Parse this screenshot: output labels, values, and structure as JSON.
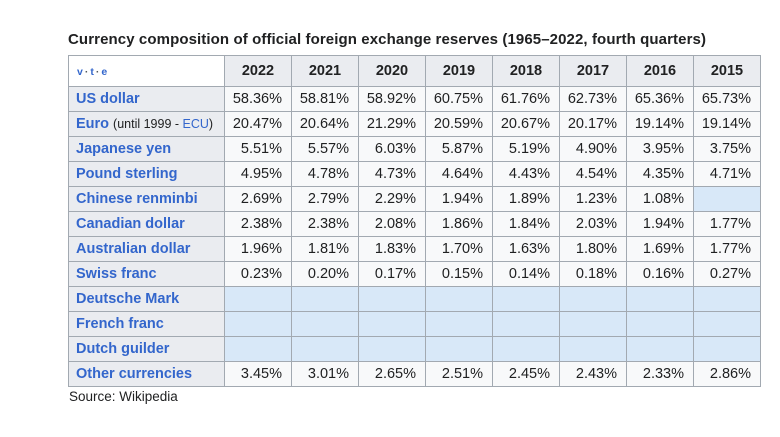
{
  "title": "Currency composition of official foreign exchange reserves (1965–2022, fourth quarters)",
  "source": "Source: Wikipedia",
  "nav": {
    "links": [
      "v",
      "t",
      "e"
    ],
    "separator": "·"
  },
  "table": {
    "year_headers": [
      "2022",
      "2021",
      "2020",
      "2019",
      "2018",
      "2017",
      "2016",
      "2015"
    ],
    "rows": [
      {
        "label": "US dollar",
        "values": [
          "58.36%",
          "58.81%",
          "58.92%",
          "60.75%",
          "61.76%",
          "62.73%",
          "65.36%",
          "65.73%"
        ]
      },
      {
        "label": "Euro",
        "note_pre": "(until 1999 - ",
        "note_link": "ECU",
        "note_post": ")",
        "values": [
          "20.47%",
          "20.64%",
          "21.29%",
          "20.59%",
          "20.67%",
          "20.17%",
          "19.14%",
          "19.14%"
        ]
      },
      {
        "label": "Japanese yen",
        "values": [
          "5.51%",
          "5.57%",
          "6.03%",
          "5.87%",
          "5.19%",
          "4.90%",
          "3.95%",
          "3.75%"
        ]
      },
      {
        "label": "Pound sterling",
        "values": [
          "4.95%",
          "4.78%",
          "4.73%",
          "4.64%",
          "4.43%",
          "4.54%",
          "4.35%",
          "4.71%"
        ]
      },
      {
        "label": "Chinese renminbi",
        "values": [
          "2.69%",
          "2.79%",
          "2.29%",
          "1.94%",
          "1.89%",
          "1.23%",
          "1.08%",
          ""
        ]
      },
      {
        "label": "Canadian dollar",
        "values": [
          "2.38%",
          "2.38%",
          "2.08%",
          "1.86%",
          "1.84%",
          "2.03%",
          "1.94%",
          "1.77%"
        ]
      },
      {
        "label": "Australian dollar",
        "values": [
          "1.96%",
          "1.81%",
          "1.83%",
          "1.70%",
          "1.63%",
          "1.80%",
          "1.69%",
          "1.77%"
        ]
      },
      {
        "label": "Swiss franc",
        "values": [
          "0.23%",
          "0.20%",
          "0.17%",
          "0.15%",
          "0.14%",
          "0.18%",
          "0.16%",
          "0.27%"
        ]
      },
      {
        "label": "Deutsche Mark",
        "values": [
          "",
          "",
          "",
          "",
          "",
          "",
          "",
          ""
        ]
      },
      {
        "label": "French franc",
        "values": [
          "",
          "",
          "",
          "",
          "",
          "",
          "",
          ""
        ]
      },
      {
        "label": "Dutch guilder",
        "values": [
          "",
          "",
          "",
          "",
          "",
          "",
          "",
          ""
        ]
      },
      {
        "label": "Other currencies",
        "values": [
          "3.45%",
          "3.01%",
          "2.65%",
          "2.51%",
          "2.45%",
          "2.43%",
          "2.33%",
          "2.86%"
        ]
      }
    ]
  },
  "colors": {
    "header_bg": "#eaecf0",
    "cell_bg": "#f8f9fa",
    "empty_cell_bg": "#d8e8f8",
    "border": "#a2a9b1",
    "link": "#3366cc",
    "text": "#202122"
  },
  "chart_data": {
    "type": "table",
    "title": "Currency composition of official foreign exchange reserves (1965–2022, fourth quarters)",
    "unit": "%",
    "categories": [
      "2022",
      "2021",
      "2020",
      "2019",
      "2018",
      "2017",
      "2016",
      "2015"
    ],
    "series": [
      {
        "name": "US dollar",
        "values": [
          58.36,
          58.81,
          58.92,
          60.75,
          61.76,
          62.73,
          65.36,
          65.73
        ]
      },
      {
        "name": "Euro (until 1999 - ECU)",
        "values": [
          20.47,
          20.64,
          21.29,
          20.59,
          20.67,
          20.17,
          19.14,
          19.14
        ]
      },
      {
        "name": "Japanese yen",
        "values": [
          5.51,
          5.57,
          6.03,
          5.87,
          5.19,
          4.9,
          3.95,
          3.75
        ]
      },
      {
        "name": "Pound sterling",
        "values": [
          4.95,
          4.78,
          4.73,
          4.64,
          4.43,
          4.54,
          4.35,
          4.71
        ]
      },
      {
        "name": "Chinese renminbi",
        "values": [
          2.69,
          2.79,
          2.29,
          1.94,
          1.89,
          1.23,
          1.08,
          null
        ]
      },
      {
        "name": "Canadian dollar",
        "values": [
          2.38,
          2.38,
          2.08,
          1.86,
          1.84,
          2.03,
          1.94,
          1.77
        ]
      },
      {
        "name": "Australian dollar",
        "values": [
          1.96,
          1.81,
          1.83,
          1.7,
          1.63,
          1.8,
          1.69,
          1.77
        ]
      },
      {
        "name": "Swiss franc",
        "values": [
          0.23,
          0.2,
          0.17,
          0.15,
          0.14,
          0.18,
          0.16,
          0.27
        ]
      },
      {
        "name": "Deutsche Mark",
        "values": [
          null,
          null,
          null,
          null,
          null,
          null,
          null,
          null
        ]
      },
      {
        "name": "French franc",
        "values": [
          null,
          null,
          null,
          null,
          null,
          null,
          null,
          null
        ]
      },
      {
        "name": "Dutch guilder",
        "values": [
          null,
          null,
          null,
          null,
          null,
          null,
          null,
          null
        ]
      },
      {
        "name": "Other currencies",
        "values": [
          3.45,
          3.01,
          2.65,
          2.51,
          2.45,
          2.43,
          2.33,
          2.86
        ]
      }
    ]
  }
}
